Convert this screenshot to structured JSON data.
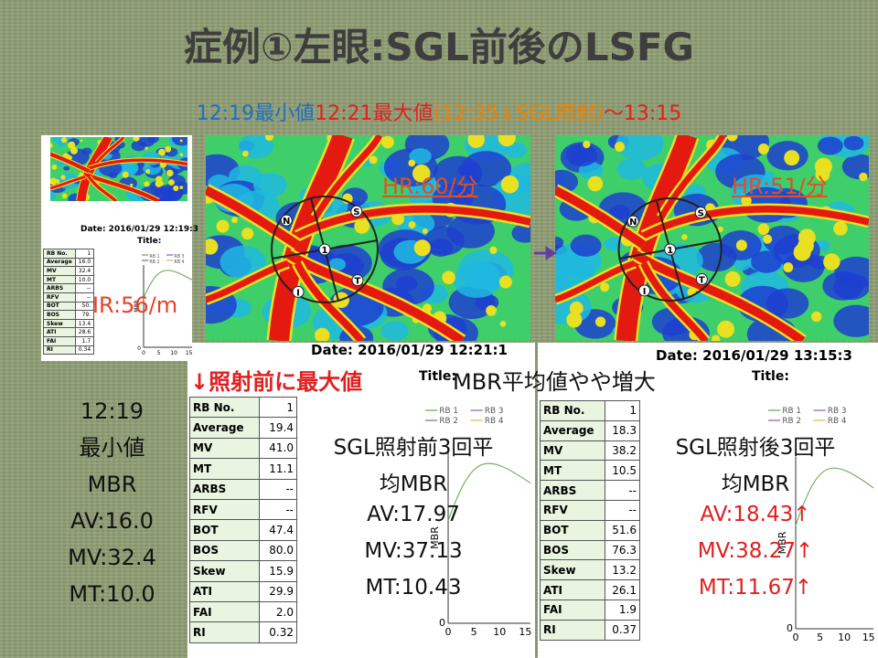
{
  "title": "症例①左眼:SGL前後のLSFG",
  "subtitle": [
    {
      "text": "12:19最小値",
      "color": "#1f6fc0"
    },
    {
      "text": "12:21最大値",
      "color": "#e02020"
    },
    {
      "text": "(12:35↓SGL照射)",
      "color": "#f08000"
    },
    {
      "text": "〜13:15",
      "color": "#e02020"
    }
  ],
  "roi_labels": [
    "N",
    "S",
    "T",
    "I",
    "1"
  ],
  "left_image": {
    "date": "Date: 2016/01/29 12:19:3",
    "title": "Title:",
    "hr": "HR:56/m",
    "table": {
      "rows": [
        [
          "RB No.",
          "1"
        ],
        [
          "Average",
          "16.0"
        ],
        [
          "MV",
          "32.4"
        ],
        [
          "MT",
          "10.0"
        ],
        [
          "ARBS",
          "--"
        ],
        [
          "RFV",
          "--"
        ],
        [
          "BOT",
          "50."
        ],
        [
          "BOS",
          "79."
        ],
        [
          "Skew",
          "13.4"
        ],
        [
          "ATI",
          "28.6"
        ],
        [
          "FAI",
          "1.7"
        ],
        [
          "RI",
          "0.34"
        ]
      ]
    }
  },
  "mid_image": {
    "hr": "HR:60/分",
    "date": "Date: 2016/01/29 12:21:1"
  },
  "right_image": {
    "hr": "HR:51/分",
    "date": "Date: 2016/01/29 13:15:3",
    "title": "Title:"
  },
  "annotation": "↓照射前に最大値",
  "mid_title": "Title:",
  "note": "MBR平均値やや増大",
  "left_summary": [
    "12:19",
    "最小値",
    "MBR",
    "AV:16.0",
    "MV:32.4",
    "MT:10.0"
  ],
  "legend": [
    "RB 1",
    "RB 2",
    "RB 3",
    "RB 4"
  ],
  "graph_xticks": [
    "0",
    "5",
    "10",
    "15"
  ],
  "graph_y0": "0",
  "graph_ylabel": "MBR",
  "mid_panel": {
    "table": {
      "rows": [
        [
          "RB No.",
          "1"
        ],
        [
          "Average",
          "19.4"
        ],
        [
          "MV",
          "41.0"
        ],
        [
          "MT",
          "11.1"
        ],
        [
          "ARBS",
          "--"
        ],
        [
          "RFV",
          "--"
        ],
        [
          "BOT",
          "47.4"
        ],
        [
          "BOS",
          "80.0"
        ],
        [
          "Skew",
          "15.9"
        ],
        [
          "ATI",
          "29.9"
        ],
        [
          "FAI",
          "2.0"
        ],
        [
          "RI",
          "0.32"
        ]
      ]
    },
    "text": [
      "SGL照射前3回平",
      "均MBR",
      "AV:17.97",
      "MV:37.13",
      "MT:10.43"
    ],
    "value_color": "#111111"
  },
  "right_panel": {
    "table": {
      "rows": [
        [
          "RB No.",
          "1"
        ],
        [
          "Average",
          "18.3"
        ],
        [
          "MV",
          "38.2"
        ],
        [
          "MT",
          "10.5"
        ],
        [
          "ARBS",
          "--"
        ],
        [
          "RFV",
          "--"
        ],
        [
          "BOT",
          "51.6"
        ],
        [
          "BOS",
          "76.3"
        ],
        [
          "Skew",
          "13.2"
        ],
        [
          "ATI",
          "26.1"
        ],
        [
          "FAI",
          "1.9"
        ],
        [
          "RI",
          "0.37"
        ]
      ]
    },
    "text": [
      "SGL照射後3回平",
      "均MBR",
      "AV:18.43↑",
      "MV:38.27↑",
      "MT:11.67↑"
    ],
    "value_color": "#e02020"
  }
}
